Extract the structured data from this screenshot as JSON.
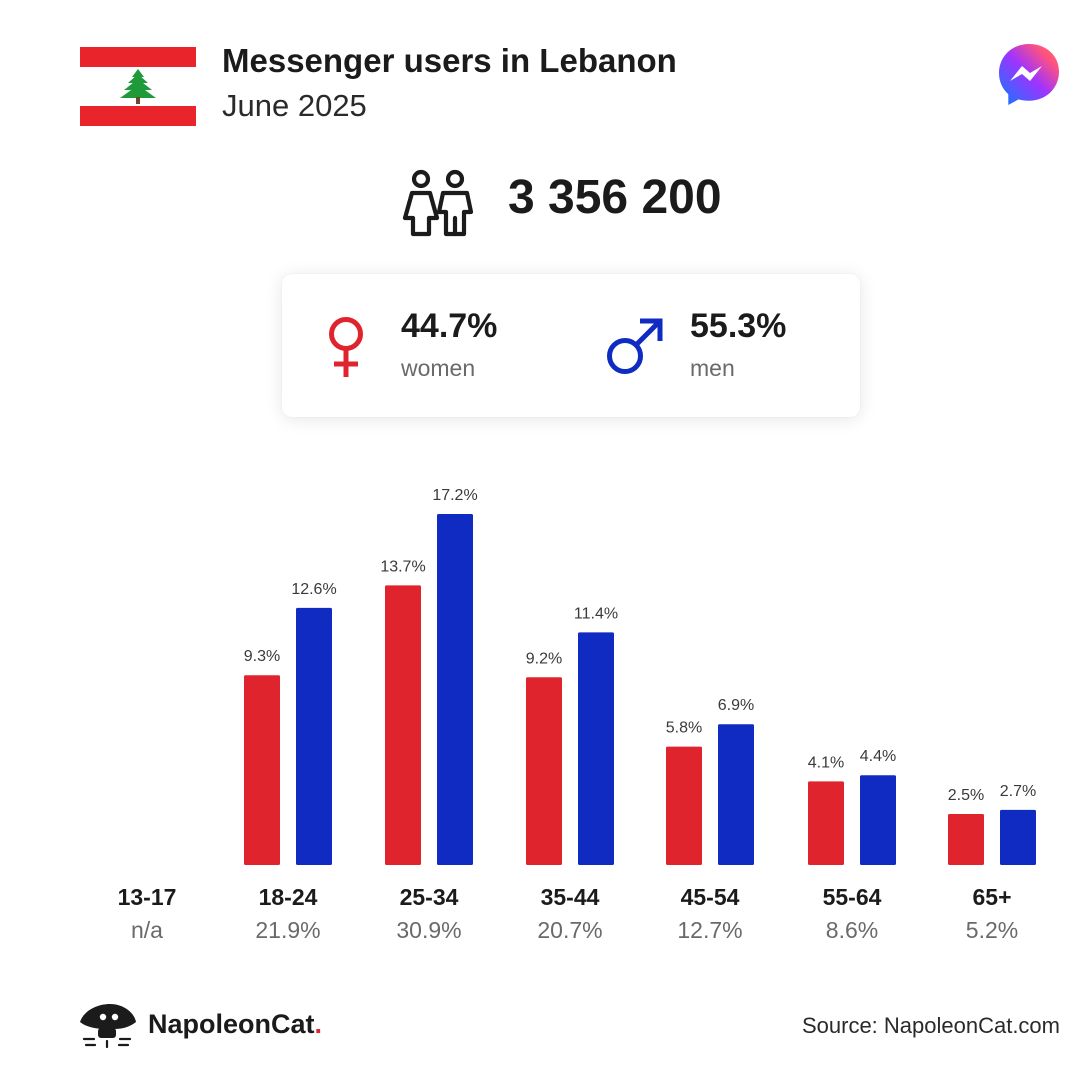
{
  "header": {
    "title": "Messenger users in Lebanon",
    "subtitle": "June 2025",
    "flag_icon": "lebanon-flag-icon",
    "app_icon": "messenger-icon"
  },
  "total": {
    "icon": "people-icon",
    "value": "3 356 200"
  },
  "gender": {
    "women": {
      "pct": "44.7%",
      "label": "women",
      "icon": "female-symbol-icon",
      "color": "#e0242e"
    },
    "men": {
      "pct": "55.3%",
      "label": "men",
      "icon": "male-symbol-icon",
      "color": "#0f2bc2"
    }
  },
  "chart_data": {
    "type": "bar",
    "categories": [
      "13-17",
      "18-24",
      "25-34",
      "35-44",
      "45-54",
      "55-64",
      "65+"
    ],
    "category_totals": [
      "n/a",
      "21.9%",
      "30.9%",
      "20.7%",
      "12.7%",
      "8.6%",
      "5.2%"
    ],
    "series": [
      {
        "values": [
          null,
          9.3,
          13.7,
          9.2,
          5.8,
          4.1,
          2.5
        ],
        "labels": [
          "",
          "9.3%",
          "13.7%",
          "9.2%",
          "5.8%",
          "4.1%",
          "2.5%"
        ],
        "color": "#e0242e"
      },
      {
        "values": [
          null,
          12.6,
          17.2,
          11.4,
          6.9,
          4.4,
          2.7
        ],
        "labels": [
          "",
          "12.6%",
          "17.2%",
          "11.4%",
          "6.9%",
          "4.4%",
          "2.7%"
        ],
        "color": "#0f2bc2"
      }
    ],
    "ylim": [
      0,
      17.2
    ],
    "grid": false,
    "legend": "none"
  },
  "footer": {
    "brand_name": "NapoleonCat",
    "brand_dot": ".",
    "brand_icon": "napoleoncat-logo-icon",
    "source": "Source: NapoleonCat.com"
  }
}
